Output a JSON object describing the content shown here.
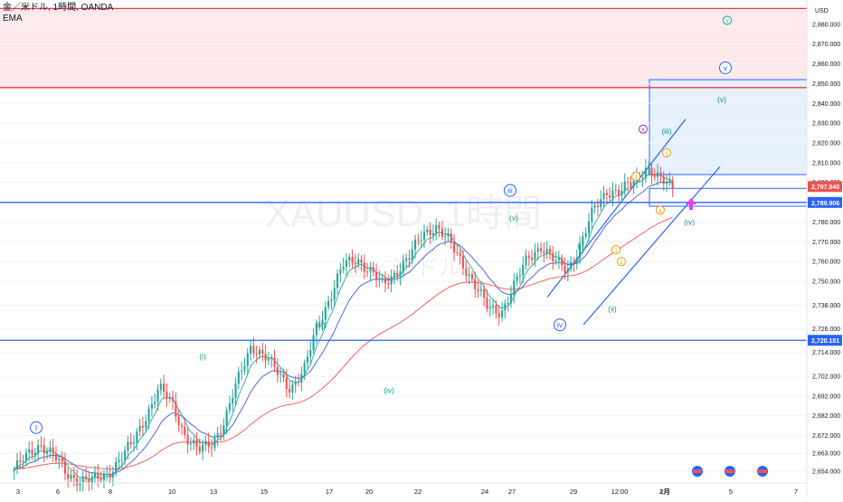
{
  "header": {
    "symbol_line": "金／米ドル, 1時間, OANDA",
    "indicator": "EMA"
  },
  "watermark": {
    "main": "XAUUSD, 1時間",
    "sub": "金／米ドル"
  },
  "colors": {
    "up": "#26a69a",
    "down": "#ef5350",
    "blue_line": "#2962ff",
    "red_line": "#f23645",
    "zone_red": "#fde7ea",
    "zone_blue": "#e3f0fd",
    "ema_fast": "#26a69a",
    "ema_mid": "#3c5ccc",
    "ema_slow": "#ef5350",
    "wave_green": "#089981",
    "wave_blue": "#2962ff",
    "wave_orange": "#f59e0b",
    "wave_purple": "#9c27b0",
    "arrow": "#e040fb"
  },
  "chart_data": {
    "type": "candlestick",
    "instrument": "XAUUSD",
    "timeframe": "1H",
    "currency_label": "USD",
    "ylim": [
      2648,
      2890
    ],
    "y_ticks": [
      2654,
      2663,
      2672,
      2682,
      2692,
      2702,
      2714,
      2726,
      2738,
      2750,
      2760,
      2770,
      2780,
      2790,
      2800,
      2810,
      2820,
      2830,
      2840,
      2850,
      2860,
      2870,
      2880
    ],
    "y_tick_labels": [
      "2,654.000",
      "2,663.000",
      "2,672.000",
      "2,682.000",
      "2,692.000",
      "2,702.000",
      "2,714.000",
      "2,726.000",
      "2,738.000",
      "2,750.000",
      "2,760.000",
      "2,770.000",
      "2,780.000",
      "2,790.000",
      "2,800.000",
      "2,810.000",
      "2,820.000",
      "2,830.000",
      "2,840.000",
      "2,850.000",
      "2,860.000",
      "2,870.000",
      "2,880.000"
    ],
    "x_tick_labels": [
      "3",
      "6",
      "8",
      "10",
      "13",
      "15",
      "17",
      "20",
      "22",
      "24",
      "27",
      "29",
      "12:00",
      "2月",
      "5",
      "7"
    ],
    "price_path": [
      [
        0,
        2655
      ],
      [
        2,
        2668
      ],
      [
        3,
        2662
      ],
      [
        4,
        2652
      ],
      [
        5,
        2650
      ],
      [
        6,
        2649
      ],
      [
        7,
        2652
      ],
      [
        8,
        2660
      ],
      [
        9,
        2668
      ],
      [
        10,
        2682
      ],
      [
        11,
        2696
      ],
      [
        12,
        2688
      ],
      [
        13,
        2672
      ],
      [
        14,
        2664
      ],
      [
        15,
        2668
      ],
      [
        16,
        2680
      ],
      [
        17,
        2700
      ],
      [
        18,
        2718
      ],
      [
        19,
        2712
      ],
      [
        20,
        2704
      ],
      [
        21,
        2696
      ],
      [
        22,
        2704
      ],
      [
        23,
        2728
      ],
      [
        24,
        2742
      ],
      [
        25,
        2758
      ],
      [
        26,
        2762
      ],
      [
        27,
        2755
      ],
      [
        28,
        2748
      ],
      [
        29,
        2755
      ],
      [
        30,
        2762
      ],
      [
        31,
        2774
      ],
      [
        32,
        2778
      ],
      [
        33,
        2770
      ],
      [
        34,
        2760
      ],
      [
        35,
        2748
      ],
      [
        36,
        2736
      ],
      [
        37,
        2735
      ],
      [
        38,
        2748
      ],
      [
        39,
        2762
      ],
      [
        40,
        2768
      ],
      [
        41,
        2760
      ],
      [
        42,
        2756
      ],
      [
        43,
        2768
      ],
      [
        44,
        2786
      ],
      [
        45,
        2796
      ],
      [
        46,
        2795
      ],
      [
        47,
        2800
      ],
      [
        48,
        2808
      ],
      [
        49,
        2801
      ],
      [
        50,
        2798
      ]
    ],
    "last_price": 2797.94,
    "last_price_label": "2,797.940",
    "horizontal_levels": [
      {
        "price": 2789.906,
        "label": "2,789.906",
        "color": "blue"
      },
      {
        "price": 2720.181,
        "label": "2,720.181",
        "color": "blue"
      },
      {
        "price": 2888,
        "color": "red"
      },
      {
        "price": 2848,
        "color": "red"
      }
    ],
    "zones": [
      {
        "from": 2848,
        "to": 2888,
        "color": "red"
      },
      {
        "from": 2804,
        "to": 2852,
        "color": "blue"
      }
    ],
    "ema_lines": [
      "fast",
      "mid",
      "slow"
    ],
    "wave_labels": [
      {
        "text": "I",
        "style": "circle",
        "color": "blue"
      },
      {
        "text": "(i)",
        "style": "plain",
        "color": "green"
      },
      {
        "text": "(iii)",
        "style": "plain",
        "color": "green"
      },
      {
        "text": "(iv)",
        "style": "plain",
        "color": "green"
      },
      {
        "text": "iii",
        "style": "circle",
        "color": "blue"
      },
      {
        "text": "(v)",
        "style": "plain",
        "color": "green"
      },
      {
        "text": "iv",
        "style": "circle",
        "color": "blue"
      },
      {
        "text": "(i)",
        "style": "plain",
        "color": "green"
      },
      {
        "text": "(ii)",
        "style": "plain",
        "color": "green"
      },
      {
        "text": "(iii)",
        "style": "plain",
        "color": "green"
      },
      {
        "text": "(iv)",
        "style": "plain",
        "color": "green"
      },
      {
        "text": "(v)",
        "style": "plain",
        "color": "green"
      },
      {
        "text": "v",
        "style": "circle",
        "color": "blue"
      },
      {
        "text": "Y",
        "style": "circle",
        "color": "green"
      },
      {
        "text": "X",
        "style": "circle",
        "color": "purple"
      },
      {
        "text": "1",
        "style": "circle",
        "color": "orange"
      },
      {
        "text": "2",
        "style": "circle",
        "color": "orange"
      },
      {
        "text": "3",
        "style": "circle",
        "color": "orange"
      },
      {
        "text": "4",
        "style": "circle",
        "color": "orange"
      },
      {
        "text": "5",
        "style": "circle",
        "color": "orange"
      }
    ],
    "event_markers": 3
  }
}
